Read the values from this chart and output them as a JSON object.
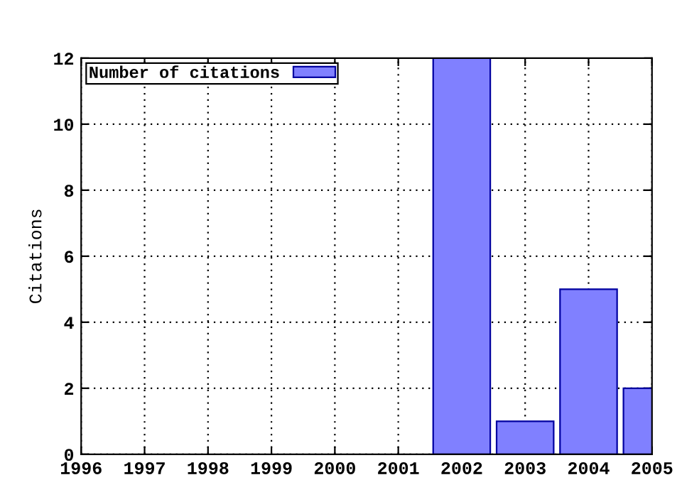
{
  "chart_data": {
    "type": "bar",
    "ylabel": "Citations",
    "x": [
      2002,
      2003,
      2004,
      2005
    ],
    "series": [
      {
        "name": "Number of citations",
        "color": "#8080ff",
        "values": [
          12,
          1,
          5,
          2
        ]
      }
    ],
    "xlim": [
      1996,
      2005
    ],
    "xticks": [
      1996,
      1997,
      1998,
      1999,
      2000,
      2001,
      2002,
      2003,
      2004,
      2005
    ],
    "ylim": [
      0,
      12
    ],
    "yticks": [
      0,
      2,
      4,
      6,
      8,
      10,
      12
    ],
    "grid": true,
    "legend": "top left"
  }
}
